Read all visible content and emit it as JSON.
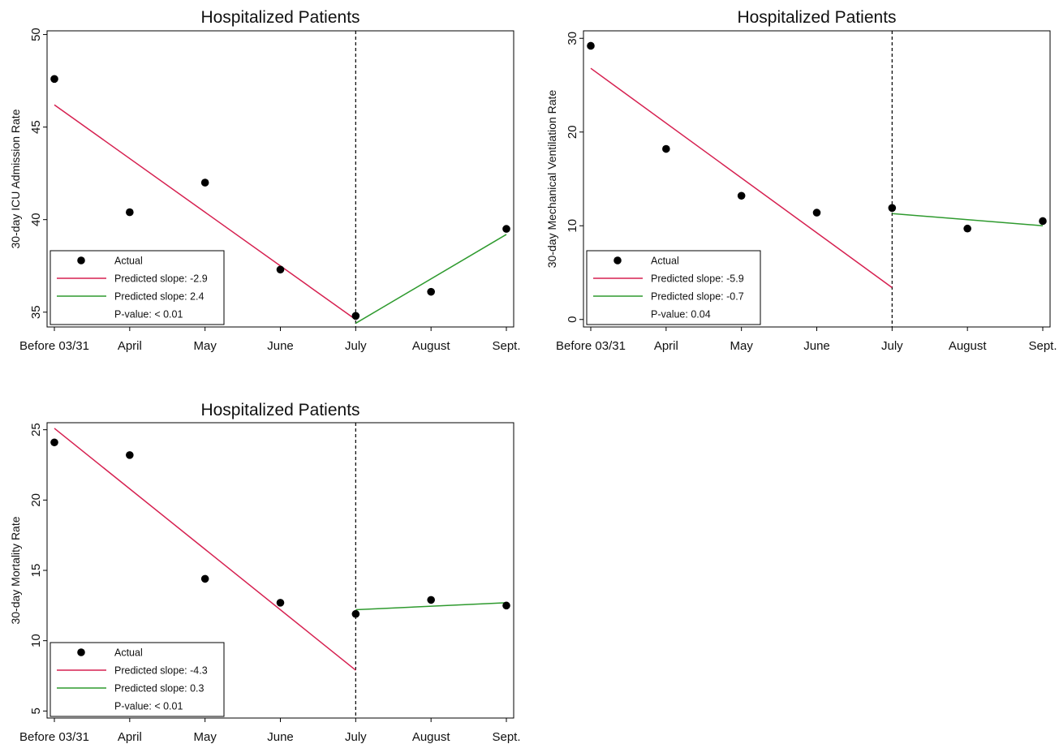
{
  "chart_data": [
    {
      "type": "scatter",
      "title": "Hospitalized Patients",
      "ylabel": "30-day ICU Admission Rate",
      "xlabel": "",
      "categories": [
        "Before 03/31",
        "April",
        "May",
        "June",
        "July",
        "August",
        "Sept."
      ],
      "ylim": [
        34.2,
        50.2
      ],
      "yticks": [
        35,
        40,
        45,
        50
      ],
      "grid": false,
      "legend_position": "bottom-left",
      "breakpoint": "July",
      "series": [
        {
          "name": "Actual",
          "kind": "points",
          "color": "#000000",
          "values": [
            47.6,
            40.4,
            42.0,
            37.3,
            34.8,
            36.1,
            39.5
          ]
        },
        {
          "name": "Predicted slope: -2.9",
          "kind": "line",
          "color": "#d62050",
          "from": {
            "x": "Before 03/31",
            "y": 46.2
          },
          "to": {
            "x": "July",
            "y": 34.6
          }
        },
        {
          "name": "Predicted slope: 2.4",
          "kind": "line",
          "color": "#2e9a2e",
          "from": {
            "x": "July",
            "y": 34.4
          },
          "to": {
            "x": "Sept.",
            "y": 39.2
          }
        }
      ],
      "legend_note": "P-value: < 0.01"
    },
    {
      "type": "scatter",
      "title": "Hospitalized Patients",
      "ylabel": "30-day Mechanical Ventilation Rate",
      "xlabel": "",
      "categories": [
        "Before 03/31",
        "April",
        "May",
        "June",
        "July",
        "August",
        "Sept."
      ],
      "ylim": [
        -0.8,
        30.8
      ],
      "yticks": [
        0,
        10,
        20,
        30
      ],
      "grid": false,
      "legend_position": "bottom-left",
      "breakpoint": "July",
      "series": [
        {
          "name": "Actual",
          "kind": "points",
          "color": "#000000",
          "values": [
            29.2,
            18.2,
            13.2,
            11.4,
            11.9,
            9.7,
            10.5
          ]
        },
        {
          "name": "Predicted slope: -5.9",
          "kind": "line",
          "color": "#d62050",
          "from": {
            "x": "Before 03/31",
            "y": 26.8
          },
          "to": {
            "x": "July",
            "y": 3.4
          }
        },
        {
          "name": "Predicted slope: -0.7",
          "kind": "line",
          "color": "#2e9a2e",
          "from": {
            "x": "July",
            "y": 11.3
          },
          "to": {
            "x": "Sept.",
            "y": 10.0
          }
        }
      ],
      "legend_note": "P-value: 0.04"
    },
    {
      "type": "scatter",
      "title": "Hospitalized Patients",
      "ylabel": "30-day Mortality Rate",
      "xlabel": "",
      "categories": [
        "Before 03/31",
        "April",
        "May",
        "June",
        "July",
        "August",
        "Sept."
      ],
      "ylim": [
        4.5,
        25.5
      ],
      "yticks": [
        5,
        10,
        15,
        20,
        25
      ],
      "grid": false,
      "legend_position": "bottom-left",
      "breakpoint": "July",
      "series": [
        {
          "name": "Actual",
          "kind": "points",
          "color": "#000000",
          "values": [
            24.1,
            23.2,
            14.4,
            12.7,
            11.9,
            12.9,
            12.5
          ]
        },
        {
          "name": "Predicted slope: -4.3",
          "kind": "line",
          "color": "#d62050",
          "from": {
            "x": "Before 03/31",
            "y": 25.1
          },
          "to": {
            "x": "July",
            "y": 7.9
          }
        },
        {
          "name": "Predicted slope: 0.3",
          "kind": "line",
          "color": "#2e9a2e",
          "from": {
            "x": "July",
            "y": 12.2
          },
          "to": {
            "x": "Sept.",
            "y": 12.7
          }
        }
      ],
      "legend_note": "P-value: < 0.01"
    }
  ]
}
